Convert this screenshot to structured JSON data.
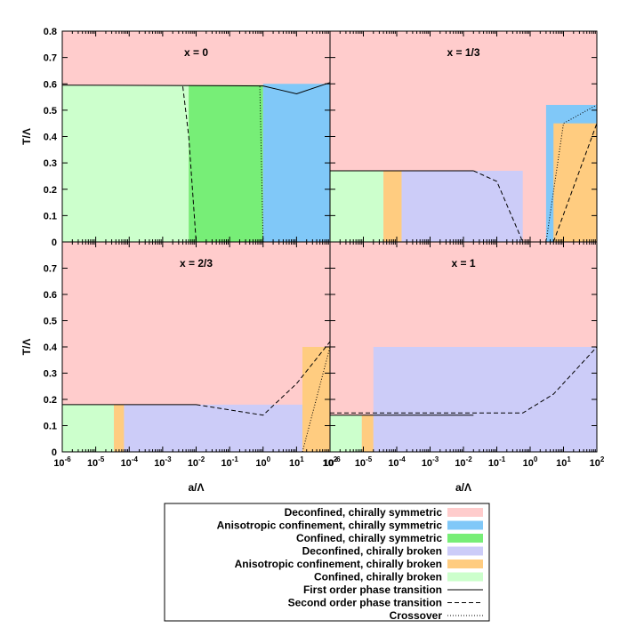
{
  "colors": {
    "deconfined_symmetric": "#ffcccc",
    "aniso_symmetric": "#80c8f8",
    "confined_symmetric": "#77ee77",
    "deconfined_broken": "#ccccf8",
    "aniso_broken": "#ffcc80",
    "confined_broken": "#ccffcc",
    "line": "#000000"
  },
  "chart_data": [
    {
      "type": "area",
      "title": "x = 0",
      "x_scale": "log",
      "xlim": [
        1e-06,
        100
      ],
      "ylabel": "T/Λ",
      "ylim": [
        0,
        0.8
      ],
      "yticks": [
        "0",
        "0.1",
        "0.2",
        "0.3",
        "0.4",
        "0.5",
        "0.6",
        "0.7",
        "0.8"
      ],
      "regions": [
        {
          "phase": "confined_broken",
          "x_range": [
            1e-06,
            0.006
          ],
          "T_top": 0.595
        },
        {
          "phase": "confined_symmetric",
          "x_range": [
            0.006,
            1.0
          ],
          "T_top": 0.595
        },
        {
          "phase": "aniso_symmetric",
          "x_range": [
            1.0,
            100
          ],
          "T_top": 0.6
        }
      ],
      "boundaries": [
        {
          "kind": "first_order",
          "points": [
            [
              1e-06,
              0.595
            ],
            [
              1,
              0.592
            ],
            [
              3,
              0.578
            ],
            [
              10,
              0.562
            ],
            [
              100,
              0.605
            ]
          ]
        },
        {
          "kind": "second_order",
          "points": [
            [
              0.004,
              0.59
            ],
            [
              0.006,
              0.4
            ],
            [
              0.01,
              0
            ]
          ]
        },
        {
          "kind": "crossover",
          "points": [
            [
              0.8,
              0.59
            ],
            [
              1.0,
              0
            ]
          ]
        }
      ]
    },
    {
      "type": "area",
      "title": "x = 1/3",
      "x_scale": "log",
      "xlim": [
        1e-06,
        100
      ],
      "ylim": [
        0,
        0.8
      ],
      "regions": [
        {
          "phase": "confined_broken",
          "x_range": [
            1e-06,
            4e-05
          ],
          "T_top": 0.27
        },
        {
          "phase": "aniso_broken",
          "x_range": [
            4e-05,
            0.00014
          ],
          "T_top": 0.27
        },
        {
          "phase": "deconfined_broken",
          "x_range": [
            0.00014,
            0.6
          ],
          "T_top": 0.27
        },
        {
          "phase": "aniso_symmetric",
          "x_range": [
            3,
            100
          ],
          "T_top": 0.52
        },
        {
          "phase": "aniso_broken",
          "x_range": [
            5,
            100
          ],
          "T_top": 0.45
        }
      ],
      "boundaries": [
        {
          "kind": "first_order",
          "points": [
            [
              1e-06,
              0.27
            ],
            [
              0.02,
              0.27
            ]
          ]
        },
        {
          "kind": "second_order",
          "points": [
            [
              0.02,
              0.27
            ],
            [
              0.1,
              0.23
            ],
            [
              0.6,
              0
            ]
          ]
        },
        {
          "kind": "second_order",
          "points": [
            [
              5,
              0
            ],
            [
              100,
              0.45
            ]
          ]
        },
        {
          "kind": "crossover",
          "points": [
            [
              3,
              0
            ],
            [
              10,
              0.45
            ],
            [
              100,
              0.52
            ]
          ]
        }
      ]
    },
    {
      "type": "area",
      "title": "x = 2/3",
      "x_scale": "log",
      "xlim": [
        1e-06,
        100
      ],
      "xlabel": "a/Λ",
      "xticks": [
        "10-6",
        "10-5",
        "10-4",
        "10-3",
        "10-2",
        "10-1",
        "100",
        "101",
        "102"
      ],
      "ylabel": "T/Λ",
      "ylim": [
        0,
        0.8
      ],
      "yticks": [
        "0",
        "0.1",
        "0.2",
        "0.3",
        "0.4",
        "0.5",
        "0.6",
        "0.7"
      ],
      "regions": [
        {
          "phase": "confined_broken",
          "x_range": [
            1e-06,
            3.5e-05
          ],
          "T_top": 0.18
        },
        {
          "phase": "aniso_broken",
          "x_range": [
            3.5e-05,
            7e-05
          ],
          "T_top": 0.18
        },
        {
          "phase": "deconfined_broken",
          "x_range": [
            7e-05,
            15
          ],
          "T_top": 0.18
        },
        {
          "phase": "aniso_broken",
          "x_range": [
            15,
            100
          ],
          "T_top": 0.4
        }
      ],
      "boundaries": [
        {
          "kind": "first_order",
          "points": [
            [
              1e-06,
              0.18
            ],
            [
              0.01,
              0.18
            ]
          ]
        },
        {
          "kind": "second_order",
          "points": [
            [
              0.01,
              0.18
            ],
            [
              1,
              0.14
            ],
            [
              10,
              0.26
            ],
            [
              100,
              0.42
            ]
          ]
        },
        {
          "kind": "crossover",
          "points": [
            [
              15,
              0
            ],
            [
              100,
              0.4
            ]
          ]
        }
      ]
    },
    {
      "type": "area",
      "title": "x = 1",
      "x_scale": "log",
      "xlim": [
        1e-06,
        100
      ],
      "xlabel": "a/Λ",
      "xticks": [
        "10-6",
        "10-5",
        "10-4",
        "10-3",
        "10-2",
        "10-1",
        "100",
        "101",
        "102"
      ],
      "ylim": [
        0,
        0.8
      ],
      "regions": [
        {
          "phase": "confined_broken",
          "x_range": [
            1e-06,
            9e-06
          ],
          "T_top": 0.14
        },
        {
          "phase": "aniso_broken",
          "x_range": [
            9e-06,
            2e-05
          ],
          "T_top": 0.14
        },
        {
          "phase": "deconfined_broken",
          "x_range": [
            2e-05,
            100
          ],
          "T_top": 0.4
        }
      ],
      "boundaries": [
        {
          "kind": "first_order",
          "points": [
            [
              1e-06,
              0.14
            ],
            [
              0.02,
              0.14
            ]
          ]
        },
        {
          "kind": "second_order",
          "points": [
            [
              1e-06,
              0.148
            ],
            [
              0.6,
              0.148
            ],
            [
              5,
              0.22
            ],
            [
              100,
              0.4
            ]
          ]
        }
      ]
    }
  ],
  "legend": {
    "entries": [
      {
        "label": "Deconfined, chirally symmetric",
        "kind": "fill",
        "phase": "deconfined_symmetric"
      },
      {
        "label": "Anisotropic confinement, chirally symmetric",
        "kind": "fill",
        "phase": "aniso_symmetric"
      },
      {
        "label": "Confined, chirally symmetric",
        "kind": "fill",
        "phase": "confined_symmetric"
      },
      {
        "label": "Deconfined, chirally broken",
        "kind": "fill",
        "phase": "deconfined_broken"
      },
      {
        "label": "Anisotropic confinement, chirally broken",
        "kind": "fill",
        "phase": "aniso_broken"
      },
      {
        "label": "Confined, chirally broken",
        "kind": "fill",
        "phase": "confined_broken"
      },
      {
        "label": "First order phase transition",
        "kind": "first_order"
      },
      {
        "label": "Second order phase transition",
        "kind": "second_order"
      },
      {
        "label": "Crossover",
        "kind": "crossover"
      }
    ]
  }
}
